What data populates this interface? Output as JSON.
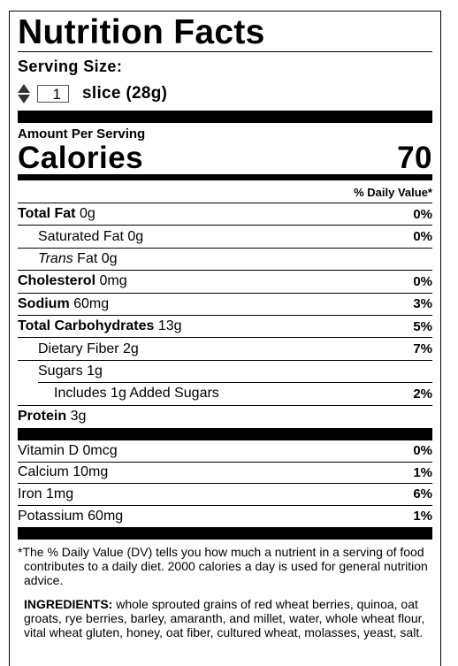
{
  "title": "Nutrition Facts",
  "serving": {
    "label": "Serving Size:",
    "quantity": "1",
    "unit": "slice (28g)"
  },
  "amount_per_serving": "Amount Per Serving",
  "calories": {
    "label": "Calories",
    "value": 70
  },
  "daily_value_header": "% Daily Value*",
  "nutrients": [
    {
      "name": "Total Fat",
      "amount": "0g",
      "dv": "0%"
    },
    {
      "name": "Saturated Fat",
      "amount": "0g",
      "dv": "0%"
    },
    {
      "name_prefix": "Trans",
      "name": "Fat",
      "amount": "0g"
    },
    {
      "name": "Cholesterol",
      "amount": "0mg",
      "dv": "0%"
    },
    {
      "name": "Sodium",
      "amount": "60mg",
      "dv": "3%"
    },
    {
      "name": "Total Carbohydrates",
      "amount": "13g",
      "dv": "5%"
    },
    {
      "name": "Dietary Fiber",
      "amount": "2g",
      "dv": "7%"
    },
    {
      "name": "Sugars",
      "amount": "1g"
    },
    {
      "name": "Includes 1g Added Sugars",
      "dv": "2%"
    },
    {
      "name": "Protein",
      "amount": "3g"
    }
  ],
  "vitamins": [
    {
      "name": "Vitamin D",
      "amount": "0mcg",
      "dv": "0%"
    },
    {
      "name": "Calcium",
      "amount": "10mg",
      "dv": "1%"
    },
    {
      "name": "Iron",
      "amount": "1mg",
      "dv": "6%"
    },
    {
      "name": "Potassium",
      "amount": "60mg",
      "dv": "1%"
    }
  ],
  "footnote": "*The % Daily Value (DV) tells you how much a nutrient in a serving of food contributes to a daily diet. 2000 calories a day is used for general nutrition advice.",
  "ingredients": {
    "label": "INGREDIENTS:",
    "text": "whole sprouted grains of red wheat berries, quinoa, oat groats, rye berries, barley, amaranth, and millet, water, whole wheat flour, vital wheat gluten, honey, oat fiber, cultured wheat, molasses, yeast, salt."
  }
}
